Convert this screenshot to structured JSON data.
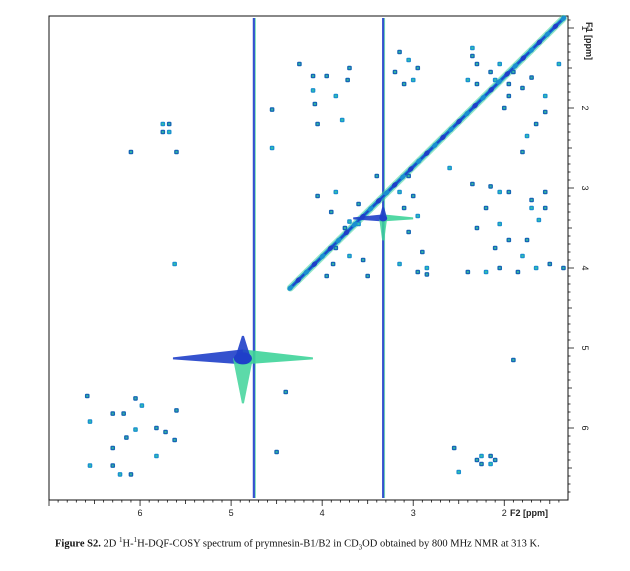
{
  "chart_data": {
    "type": "scatter",
    "subtype": "2D NMR contour spectrum (DQF-COSY)",
    "x_axis": {
      "label": "F2 [ppm]",
      "reversed": true,
      "range": [
        7.0,
        1.3
      ],
      "ticks": [
        "6",
        "5",
        "4",
        "3",
        "2"
      ],
      "tick_values": [
        6,
        5,
        4,
        3,
        2
      ]
    },
    "y_axis": {
      "label": "F1 [ppm]",
      "reversed": true,
      "range": [
        0.85,
        6.9
      ],
      "ticks": [
        "1",
        "2",
        "3",
        "4",
        "5",
        "6"
      ],
      "tick_values": [
        1,
        2,
        3,
        4,
        5,
        6
      ],
      "position": "right"
    },
    "colors": {
      "dark": "#1f3fc9",
      "mid": "#1a8fd0",
      "light": "#3fd49a",
      "dot": "#1565b5"
    },
    "diagonal": {
      "from": [
        4.35,
        4.25
      ],
      "to": [
        1.35,
        0.88
      ]
    },
    "solvent_lines": [
      4.75,
      3.33
    ],
    "strong_peaks": [
      [
        4.87,
        5.13
      ],
      [
        3.33,
        3.38
      ]
    ],
    "peaks": [
      [
        6.55,
        6.47
      ],
      [
        6.3,
        6.47
      ],
      [
        6.15,
        6.12
      ],
      [
        6.22,
        6.58
      ],
      [
        6.1,
        6.58
      ],
      [
        6.05,
        5.63
      ],
      [
        6.55,
        5.92
      ],
      [
        6.3,
        5.82
      ],
      [
        6.18,
        5.82
      ],
      [
        6.05,
        6.02
      ],
      [
        5.82,
        6.0
      ],
      [
        5.72,
        6.05
      ],
      [
        5.82,
        6.35
      ],
      [
        5.62,
        6.15
      ],
      [
        5.6,
        5.78
      ],
      [
        5.98,
        5.72
      ],
      [
        6.58,
        5.6
      ],
      [
        6.3,
        6.25
      ],
      [
        5.75,
        2.2
      ],
      [
        5.68,
        2.2
      ],
      [
        5.75,
        2.3
      ],
      [
        5.68,
        2.3
      ],
      [
        6.1,
        2.55
      ],
      [
        5.6,
        2.55
      ],
      [
        5.62,
        3.95
      ],
      [
        4.25,
        1.45
      ],
      [
        4.1,
        1.6
      ],
      [
        4.1,
        1.78
      ],
      [
        4.08,
        1.95
      ],
      [
        3.95,
        1.6
      ],
      [
        3.85,
        1.85
      ],
      [
        3.7,
        1.5
      ],
      [
        3.72,
        1.65
      ],
      [
        3.78,
        2.15
      ],
      [
        4.05,
        2.2
      ],
      [
        3.15,
        1.3
      ],
      [
        3.05,
        1.4
      ],
      [
        3.2,
        1.55
      ],
      [
        2.95,
        1.5
      ],
      [
        3.0,
        1.65
      ],
      [
        3.1,
        1.7
      ],
      [
        4.05,
        3.1
      ],
      [
        3.85,
        3.05
      ],
      [
        3.9,
        3.3
      ],
      [
        3.6,
        3.2
      ],
      [
        3.6,
        3.45
      ],
      [
        3.75,
        3.5
      ],
      [
        3.85,
        3.75
      ],
      [
        3.7,
        3.85
      ],
      [
        3.55,
        3.9
      ],
      [
        3.5,
        4.1
      ],
      [
        3.15,
        3.05
      ],
      [
        3.1,
        3.25
      ],
      [
        3.0,
        3.1
      ],
      [
        2.95,
        3.35
      ],
      [
        3.05,
        3.55
      ],
      [
        2.9,
        3.8
      ],
      [
        3.15,
        3.95
      ],
      [
        2.95,
        4.05
      ],
      [
        2.85,
        4.08
      ],
      [
        2.35,
        1.25
      ],
      [
        2.3,
        1.45
      ],
      [
        2.15,
        1.55
      ],
      [
        2.1,
        1.65
      ],
      [
        1.95,
        1.7
      ],
      [
        1.9,
        1.55
      ],
      [
        2.05,
        1.45
      ],
      [
        1.7,
        1.62
      ],
      [
        1.8,
        1.75
      ],
      [
        1.55,
        1.85
      ],
      [
        1.55,
        2.05
      ],
      [
        1.65,
        2.2
      ],
      [
        1.75,
        2.35
      ],
      [
        2.3,
        1.7
      ],
      [
        1.95,
        1.85
      ],
      [
        2.4,
        1.65
      ],
      [
        2.35,
        2.95
      ],
      [
        2.15,
        2.98
      ],
      [
        2.05,
        3.05
      ],
      [
        1.95,
        3.05
      ],
      [
        1.7,
        3.15
      ],
      [
        1.7,
        3.25
      ],
      [
        1.55,
        3.05
      ],
      [
        1.55,
        3.25
      ],
      [
        1.62,
        3.4
      ],
      [
        2.2,
        3.25
      ],
      [
        2.3,
        3.5
      ],
      [
        2.05,
        3.45
      ],
      [
        1.95,
        3.65
      ],
      [
        1.75,
        3.65
      ],
      [
        1.8,
        3.85
      ],
      [
        2.1,
        3.75
      ],
      [
        2.4,
        4.05
      ],
      [
        2.2,
        4.05
      ],
      [
        2.05,
        4.0
      ],
      [
        1.85,
        4.05
      ],
      [
        1.65,
        4.0
      ],
      [
        1.5,
        3.95
      ],
      [
        1.35,
        4.0
      ],
      [
        2.25,
        6.35
      ],
      [
        2.15,
        6.35
      ],
      [
        2.25,
        6.45
      ],
      [
        2.15,
        6.45
      ],
      [
        2.3,
        6.4
      ],
      [
        2.1,
        6.4
      ],
      [
        2.5,
        6.55
      ],
      [
        2.55,
        6.25
      ],
      [
        1.9,
        5.15
      ],
      [
        1.4,
        1.45
      ],
      [
        2.35,
        1.35
      ],
      [
        4.55,
        2.02
      ],
      [
        4.55,
        2.5
      ],
      [
        4.5,
        6.3
      ],
      [
        4.4,
        5.55
      ],
      [
        2.6,
        2.75
      ],
      [
        3.95,
        4.1
      ],
      [
        3.88,
        3.95
      ],
      [
        3.7,
        3.42
      ],
      [
        3.05,
        2.85
      ],
      [
        3.4,
        2.85
      ],
      [
        2.85,
        4.0
      ],
      [
        1.8,
        2.55
      ],
      [
        2.0,
        2.0
      ]
    ]
  },
  "caption": {
    "label": "Figure S2.",
    "text_1": " 2D ",
    "sup_1": "1",
    "text_2": "H-",
    "sup_2": "1",
    "text_3": "H-DQF-COSY spectrum of prymnesin-B1/B2 in CD",
    "sub_1": "3",
    "text_4": "OD obtained by 800 MHz NMR at 313 K."
  }
}
